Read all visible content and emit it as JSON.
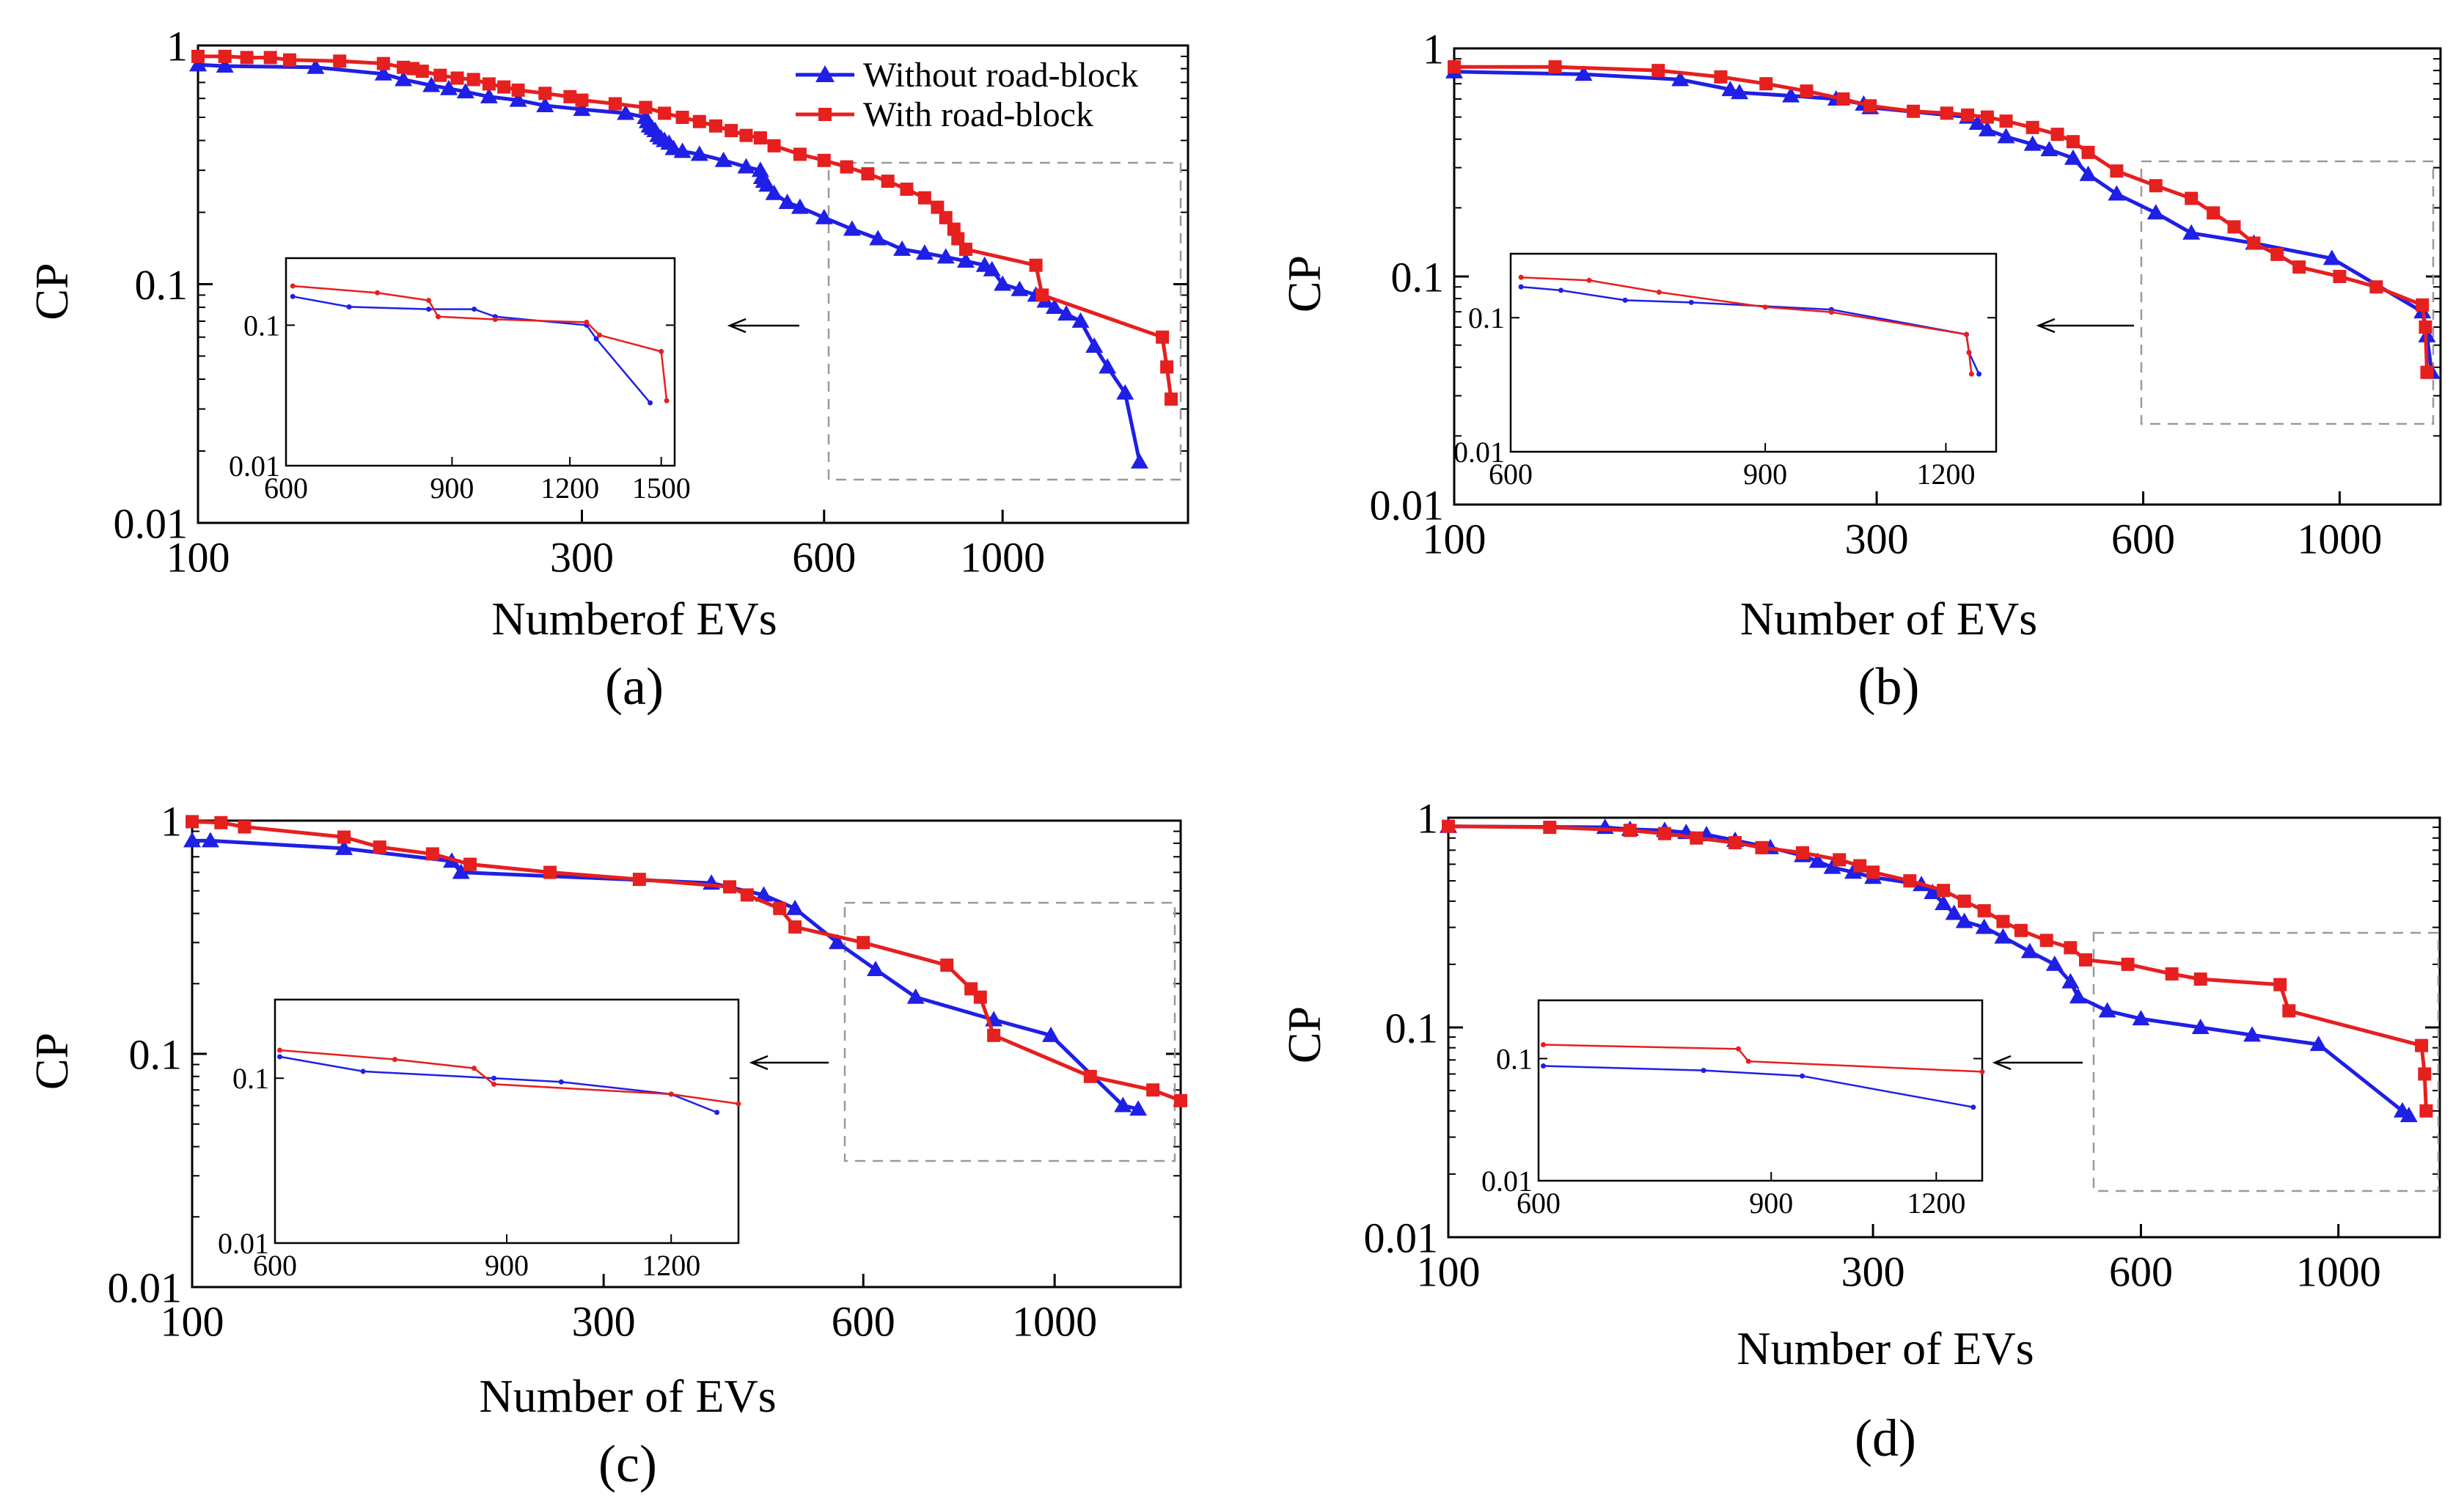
{
  "chart_data": [
    {
      "type": "line",
      "panel_label": "(a)",
      "xlabel": "Numberof EVs",
      "ylabel": "CP",
      "xscale": "log",
      "yscale": "log",
      "xlim": [
        100,
        1700
      ],
      "ylim": [
        0.01,
        1
      ],
      "x_ticks": [
        100,
        300,
        600,
        1000
      ],
      "x_tick_labels": [
        "100",
        "300",
        "600",
        "1000"
      ],
      "y_ticks": [
        0.01,
        0.1,
        1
      ],
      "y_tick_labels": [
        "0.01",
        "0.1",
        "1"
      ],
      "legend": {
        "position": "top-right",
        "entries": [
          {
            "label": "Without road-block",
            "color": "#1f1fe6",
            "marker": "triangle"
          },
          {
            "label": "With road-block",
            "color": "#e61f1f",
            "marker": "square"
          }
        ]
      },
      "series": [
        {
          "name": "Without road-block",
          "color": "#1f1fe6",
          "marker": "triangle",
          "x": [
            100,
            108,
            140,
            170,
            180,
            195,
            205,
            215,
            230,
            250,
            270,
            300,
            340,
            360,
            362,
            364,
            367,
            370,
            373,
            376,
            380,
            385,
            390,
            400,
            420,
            450,
            480,
            500,
            502,
            505,
            510,
            520,
            540,
            560,
            600,
            650,
            700,
            750,
            800,
            850,
            900,
            950,
            970,
            1000,
            1050,
            1100,
            1130,
            1160,
            1200,
            1250,
            1300,
            1350,
            1420,
            1480
          ],
          "y": [
            0.83,
            0.82,
            0.81,
            0.76,
            0.72,
            0.68,
            0.66,
            0.64,
            0.61,
            0.59,
            0.56,
            0.54,
            0.52,
            0.5,
            0.48,
            0.46,
            0.45,
            0.44,
            0.42,
            0.41,
            0.4,
            0.39,
            0.37,
            0.36,
            0.35,
            0.33,
            0.31,
            0.3,
            0.28,
            0.27,
            0.26,
            0.24,
            0.22,
            0.21,
            0.19,
            0.17,
            0.155,
            0.14,
            0.135,
            0.13,
            0.125,
            0.12,
            0.115,
            0.1,
            0.095,
            0.09,
            0.085,
            0.08,
            0.075,
            0.07,
            0.055,
            0.045,
            0.035,
            0.018
          ]
        },
        {
          "name": "With road-block",
          "color": "#e61f1f",
          "marker": "square",
          "x": [
            100,
            108,
            115,
            123,
            130,
            150,
            170,
            180,
            185,
            190,
            200,
            210,
            220,
            230,
            240,
            250,
            270,
            290,
            300,
            330,
            360,
            380,
            400,
            420,
            440,
            460,
            480,
            500,
            520,
            560,
            600,
            640,
            680,
            720,
            760,
            800,
            830,
            850,
            870,
            880,
            900,
            1100,
            1120,
            1580,
            1600,
            1620
          ],
          "y": [
            0.9,
            0.9,
            0.89,
            0.89,
            0.87,
            0.86,
            0.84,
            0.81,
            0.8,
            0.78,
            0.75,
            0.73,
            0.72,
            0.69,
            0.67,
            0.65,
            0.63,
            0.61,
            0.59,
            0.57,
            0.55,
            0.52,
            0.5,
            0.48,
            0.46,
            0.44,
            0.42,
            0.41,
            0.38,
            0.35,
            0.33,
            0.31,
            0.29,
            0.27,
            0.25,
            0.23,
            0.21,
            0.19,
            0.17,
            0.155,
            0.14,
            0.12,
            0.09,
            0.06,
            0.045,
            0.033
          ]
        }
      ],
      "inset": {
        "xlim": [
          600,
          1550
        ],
        "ylim": [
          0.01,
          0.3
        ],
        "x_ticks": [
          600,
          900,
          1200,
          1500
        ],
        "x_tick_labels": [
          "600",
          "900",
          "1200",
          "1500"
        ],
        "y_ticks": [
          0.01,
          0.1
        ],
        "y_tick_labels": [
          "0.01",
          "0.1"
        ],
        "series": [
          {
            "name": "Without road-block",
            "x": [
              610,
              700,
              850,
              950,
              1000,
              1250,
              1280,
              1460
            ],
            "y": [
              0.16,
              0.135,
              0.13,
              0.13,
              0.115,
              0.1,
              0.08,
              0.028
            ]
          },
          {
            "name": "With road-block",
            "x": [
              610,
              750,
              850,
              870,
              1000,
              1250,
              1290,
              1500,
              1520
            ],
            "y": [
              0.19,
              0.17,
              0.15,
              0.115,
              0.11,
              0.105,
              0.085,
              0.065,
              0.029
            ]
          }
        ]
      }
    },
    {
      "type": "line",
      "panel_label": "(b)",
      "xlabel": "Number of EVs",
      "ylabel": "CP",
      "xscale": "log",
      "yscale": "log",
      "xlim": [
        100,
        1300
      ],
      "ylim": [
        0.01,
        1
      ],
      "x_ticks": [
        100,
        300,
        600,
        1000
      ],
      "x_tick_labels": [
        "100",
        "300",
        "600",
        "1000"
      ],
      "y_ticks": [
        0.01,
        0.1,
        1
      ],
      "y_tick_labels": [
        "0.01",
        "0.1",
        "1"
      ],
      "series": [
        {
          "name": "Without road-block",
          "color": "#1f1fe6",
          "marker": "triangle",
          "x": [
            100,
            140,
            180,
            205,
            210,
            240,
            270,
            290,
            295,
            380,
            390,
            400,
            420,
            450,
            470,
            500,
            520,
            560,
            620,
            680,
            800,
            980,
            1240,
            1255,
            1270
          ],
          "y": [
            0.79,
            0.77,
            0.73,
            0.66,
            0.64,
            0.62,
            0.6,
            0.57,
            0.55,
            0.5,
            0.47,
            0.44,
            0.41,
            0.38,
            0.36,
            0.33,
            0.28,
            0.23,
            0.19,
            0.155,
            0.14,
            0.12,
            0.07,
            0.055,
            0.038
          ]
        },
        {
          "name": "With road-block",
          "color": "#e61f1f",
          "marker": "square",
          "x": [
            100,
            130,
            170,
            200,
            225,
            250,
            275,
            295,
            330,
            360,
            380,
            400,
            420,
            450,
            480,
            500,
            520,
            560,
            620,
            680,
            720,
            760,
            800,
            850,
            900,
            1000,
            1100,
            1240,
            1250,
            1255
          ],
          "y": [
            0.83,
            0.83,
            0.8,
            0.75,
            0.7,
            0.65,
            0.6,
            0.56,
            0.53,
            0.52,
            0.51,
            0.5,
            0.48,
            0.45,
            0.42,
            0.39,
            0.35,
            0.29,
            0.25,
            0.22,
            0.19,
            0.165,
            0.14,
            0.125,
            0.11,
            0.1,
            0.09,
            0.075,
            0.06,
            0.038
          ]
        }
      ],
      "inset": {
        "xlim": [
          600,
          1300
        ],
        "ylim": [
          0.01,
          0.3
        ],
        "x_ticks": [
          600,
          900,
          1200
        ],
        "x_tick_labels": [
          "600",
          "900",
          "1200"
        ],
        "y_ticks": [
          0.01,
          0.1
        ],
        "y_tick_labels": [
          "0.01",
          "0.1"
        ],
        "series": [
          {
            "name": "Without road-block",
            "x": [
              610,
              650,
              720,
              800,
              1000,
              1240,
              1245,
              1265
            ],
            "y": [
              0.17,
              0.16,
              0.135,
              0.13,
              0.115,
              0.075,
              0.055,
              0.038
            ]
          },
          {
            "name": "With road-block",
            "x": [
              610,
              680,
              760,
              900,
              1000,
              1240,
              1245,
              1250
            ],
            "y": [
              0.2,
              0.19,
              0.155,
              0.12,
              0.11,
              0.075,
              0.055,
              0.038
            ]
          }
        ]
      }
    },
    {
      "type": "line",
      "panel_label": "(c)",
      "xlabel": "Number of EVs",
      "ylabel": "CP",
      "xscale": "log",
      "yscale": "log",
      "xlim": [
        100,
        1400
      ],
      "ylim": [
        0.01,
        1
      ],
      "x_ticks": [
        100,
        300,
        600,
        1000
      ],
      "x_tick_labels": [
        "100",
        "300",
        "600",
        "1000"
      ],
      "y_ticks": [
        0.01,
        0.1,
        1
      ],
      "y_tick_labels": [
        "0.01",
        "0.1",
        "1"
      ],
      "series": [
        {
          "name": "Without road-block",
          "color": "#1f1fe6",
          "marker": "triangle",
          "x": [
            100,
            105,
            150,
            200,
            205,
            400,
            460,
            500,
            560,
            620,
            690,
            850,
            990,
            1200,
            1250
          ],
          "y": [
            0.82,
            0.82,
            0.76,
            0.67,
            0.6,
            0.54,
            0.48,
            0.42,
            0.3,
            0.23,
            0.175,
            0.14,
            0.12,
            0.06,
            0.058
          ]
        },
        {
          "name": "With road-block",
          "color": "#e61f1f",
          "marker": "square",
          "x": [
            100,
            108,
            115,
            150,
            165,
            190,
            210,
            260,
            330,
            420,
            440,
            480,
            500,
            600,
            750,
            800,
            820,
            850,
            1100,
            1300,
            1400
          ],
          "y": [
            0.99,
            0.98,
            0.94,
            0.85,
            0.77,
            0.72,
            0.65,
            0.6,
            0.56,
            0.52,
            0.48,
            0.42,
            0.35,
            0.3,
            0.24,
            0.19,
            0.175,
            0.12,
            0.08,
            0.07,
            0.063
          ]
        }
      ],
      "inset": {
        "xlim": [
          600,
          1350
        ],
        "ylim": [
          0.01,
          0.3
        ],
        "x_ticks": [
          600,
          900,
          1200
        ],
        "x_tick_labels": [
          "600",
          "900",
          "1200"
        ],
        "y_ticks": [
          0.01,
          0.1
        ],
        "y_tick_labels": [
          "0.01",
          "0.1"
        ],
        "series": [
          {
            "name": "Without road-block",
            "x": [
              605,
              700,
              880,
              990,
              1200,
              1300
            ],
            "y": [
              0.135,
              0.11,
              0.1,
              0.095,
              0.08,
              0.062
            ]
          },
          {
            "name": "With road-block",
            "x": [
              605,
              740,
              850,
              880,
              1200,
              1350
            ],
            "y": [
              0.148,
              0.13,
              0.115,
              0.092,
              0.08,
              0.07
            ]
          }
        ]
      }
    },
    {
      "type": "line",
      "panel_label": "(d)",
      "xlabel": "Number of EVs",
      "ylabel": "CP",
      "xscale": "log",
      "yscale": "log",
      "xlim": [
        100,
        1300
      ],
      "ylim": [
        0.01,
        1
      ],
      "x_ticks": [
        100,
        300,
        600,
        1000
      ],
      "x_tick_labels": [
        "100",
        "300",
        "600",
        "1000"
      ],
      "y_ticks": [
        0.01,
        0.1,
        1
      ],
      "y_tick_labels": [
        "0.01",
        "0.1",
        "1"
      ],
      "series": [
        {
          "name": "Without road-block",
          "color": "#1f1fe6",
          "marker": "triangle",
          "x": [
            100,
            150,
            160,
            175,
            185,
            195,
            210,
            230,
            250,
            260,
            270,
            285,
            300,
            340,
            350,
            360,
            370,
            380,
            400,
            420,
            450,
            480,
            500,
            510,
            550,
            600,
            700,
            800,
            950,
            1180,
            1200
          ],
          "y": [
            0.91,
            0.9,
            0.88,
            0.87,
            0.85,
            0.83,
            0.78,
            0.72,
            0.66,
            0.62,
            0.58,
            0.55,
            0.52,
            0.48,
            0.44,
            0.39,
            0.35,
            0.32,
            0.3,
            0.27,
            0.23,
            0.2,
            0.165,
            0.14,
            0.12,
            0.11,
            0.1,
            0.092,
            0.083,
            0.04,
            0.038
          ]
        },
        {
          "name": "With road-block",
          "color": "#e61f1f",
          "marker": "square",
          "x": [
            100,
            130,
            160,
            175,
            190,
            210,
            225,
            250,
            275,
            290,
            300,
            330,
            360,
            380,
            400,
            420,
            440,
            470,
            500,
            520,
            580,
            650,
            700,
            860,
            880,
            1240,
            1250,
            1255
          ],
          "y": [
            0.91,
            0.9,
            0.87,
            0.84,
            0.8,
            0.76,
            0.72,
            0.68,
            0.63,
            0.59,
            0.55,
            0.5,
            0.45,
            0.4,
            0.36,
            0.32,
            0.29,
            0.26,
            0.24,
            0.21,
            0.2,
            0.18,
            0.17,
            0.16,
            0.12,
            0.082,
            0.06,
            0.04
          ]
        }
      ],
      "inset": {
        "xlim": [
          600,
          1300
        ],
        "ylim": [
          0.01,
          0.3
        ],
        "x_ticks": [
          600,
          900,
          1200
        ],
        "x_tick_labels": [
          "600",
          "900",
          "1200"
        ],
        "y_ticks": [
          0.01,
          0.1
        ],
        "y_tick_labels": [
          "0.01",
          "0.1"
        ],
        "series": [
          {
            "name": "Without road-block",
            "x": [
              605,
              800,
              950,
              1280
            ],
            "y": [
              0.087,
              0.08,
              0.072,
              0.04
            ]
          },
          {
            "name": "With road-block",
            "x": [
              605,
              850,
              865,
              1300
            ],
            "y": [
              0.13,
              0.12,
              0.095,
              0.078
            ]
          }
        ]
      }
    }
  ]
}
